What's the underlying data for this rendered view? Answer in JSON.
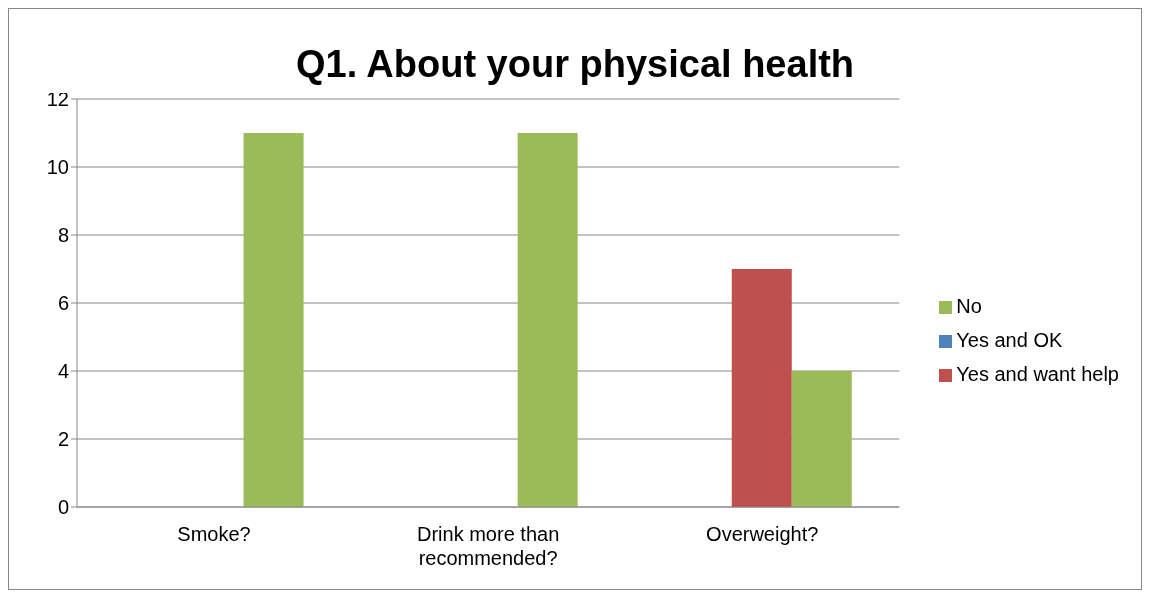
{
  "chart_data": {
    "type": "bar",
    "title": "Q1. About your physical health",
    "categories": [
      "Smoke?",
      "Drink more than recommended?",
      "Overweight?"
    ],
    "series": [
      {
        "name": "Yes and OK",
        "color": "#4f81bd",
        "values": [
          0,
          0,
          0
        ]
      },
      {
        "name": "Yes and want help",
        "color": "#c0504d",
        "values": [
          0,
          0,
          7
        ]
      },
      {
        "name": "No",
        "color": "#9bbb59",
        "values": [
          11,
          11,
          4
        ]
      }
    ],
    "ylim": [
      0,
      12
    ],
    "yticks": [
      0,
      2,
      4,
      6,
      8,
      10,
      12
    ],
    "grid": "y",
    "legend": "right"
  }
}
